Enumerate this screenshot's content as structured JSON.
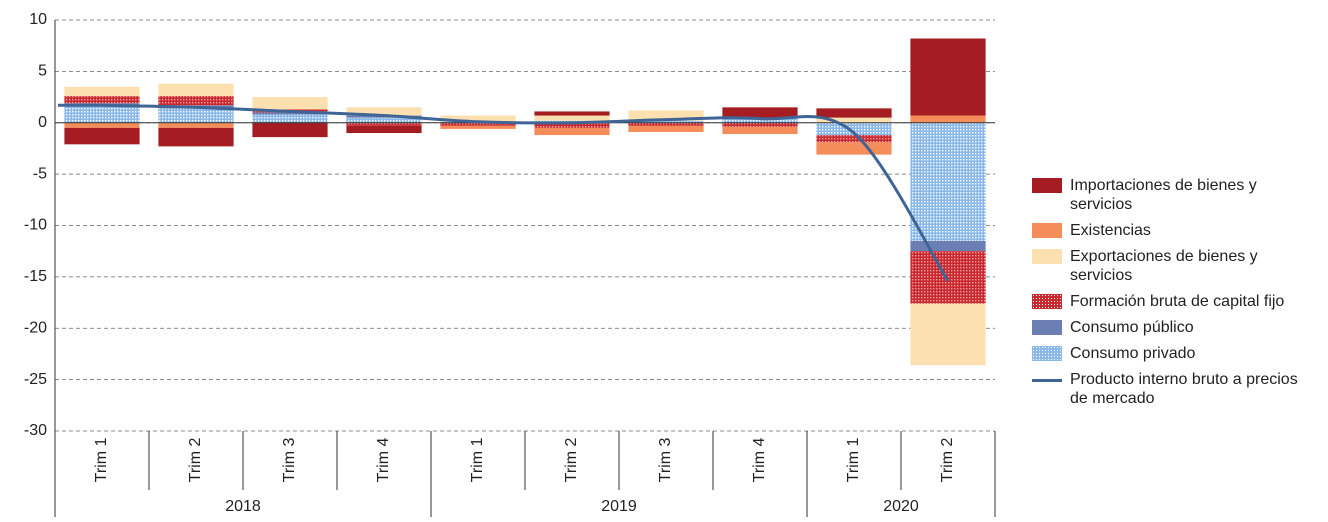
{
  "chart_data": {
    "type": "bar",
    "stacked": true,
    "categories": [
      "Trim 1",
      "Trim 2",
      "Trim 3",
      "Trim 4",
      "Trim 1",
      "Trim 2",
      "Trim 3",
      "Trim 4",
      "Trim 1",
      "Trim 2"
    ],
    "groups": [
      {
        "label": "2018",
        "span": 4
      },
      {
        "label": "2019",
        "span": 4
      },
      {
        "label": "2020",
        "span": 2
      }
    ],
    "ylim": [
      -30,
      10
    ],
    "yticks": [
      -30,
      -25,
      -20,
      -15,
      -10,
      -5,
      0,
      5,
      10
    ],
    "grid": true,
    "series": [
      {
        "name": "Consumo privado",
        "color": "#8ab8e8",
        "pattern": "dots",
        "values": [
          1.6,
          1.4,
          0.8,
          0.5,
          0.1,
          0.2,
          0.2,
          0.4,
          -1.2,
          -11.5
        ]
      },
      {
        "name": "Consumo público",
        "color": "#6b7fb5",
        "values": [
          0.3,
          0.3,
          0.2,
          0.2,
          0.0,
          0.0,
          0.0,
          0.1,
          0.0,
          -1.0
        ]
      },
      {
        "name": "Formación bruta de capital fijo",
        "color": "#c8282e",
        "pattern": "dots",
        "values": [
          0.7,
          0.9,
          0.3,
          -0.3,
          -0.3,
          -0.5,
          -0.3,
          -0.4,
          -0.7,
          -5.1
        ]
      },
      {
        "name": "Exportaciones de bienes y servicios",
        "color": "#fde0b0",
        "values": [
          0.9,
          1.2,
          1.2,
          0.8,
          0.6,
          0.5,
          1.0,
          0.0,
          0.5,
          -6.0
        ]
      },
      {
        "name": "Existencias",
        "color": "#f58d5a",
        "values": [
          -0.5,
          -0.5,
          0.0,
          0.0,
          -0.3,
          -0.7,
          -0.6,
          -0.7,
          -1.2,
          0.7
        ]
      },
      {
        "name": "Importaciones de bienes y servicios",
        "color": "#a51d22",
        "values": [
          -1.6,
          -1.8,
          -1.4,
          -0.7,
          0.0,
          0.4,
          0.0,
          1.0,
          0.9,
          7.5
        ]
      },
      {
        "name": "Producto interno bruto a precios de mercado",
        "color": "#3f6496",
        "type": "line",
        "values": [
          1.7,
          1.5,
          1.1,
          0.7,
          0.1,
          0.0,
          0.3,
          0.4,
          -1.0,
          -15.4
        ]
      }
    ],
    "legend_order": [
      5,
      4,
      3,
      2,
      1,
      0,
      6
    ]
  }
}
